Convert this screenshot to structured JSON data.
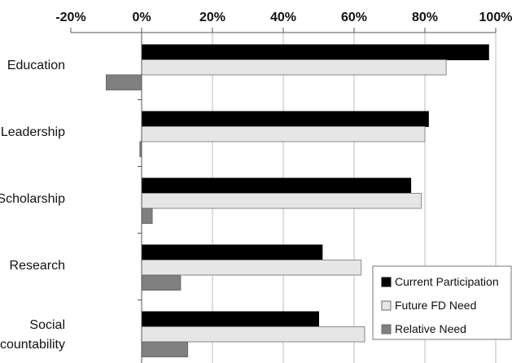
{
  "chart_data": {
    "type": "bar",
    "orientation": "horizontal",
    "categories": [
      "Education",
      "Leadership",
      "Scholarship",
      "Research",
      "Social Accountability"
    ],
    "category_lines": [
      [
        "Education"
      ],
      [
        "Leadership"
      ],
      [
        "Scholarship"
      ],
      [
        "Research"
      ],
      [
        "Social",
        "Accountability"
      ]
    ],
    "series": [
      {
        "name": "Current Participation",
        "color": "#000000",
        "values": [
          98,
          81,
          76,
          51,
          50
        ]
      },
      {
        "name": "Future FD Need",
        "color": "#e6e6e6",
        "values": [
          86,
          80,
          79,
          62,
          63
        ]
      },
      {
        "name": "Relative Need",
        "color": "#808080",
        "values": [
          -10,
          -0.5,
          3,
          11,
          13
        ]
      }
    ],
    "xlim": [
      -20,
      100
    ],
    "xticks": [
      -20,
      0,
      20,
      40,
      60,
      80,
      100
    ],
    "xtick_labels": [
      "-20%",
      "0%",
      "20%",
      "40%",
      "60%",
      "80%",
      "100%"
    ],
    "grid": "vertical",
    "legend_position": "bottom-right",
    "title": "",
    "xlabel": "",
    "ylabel": ""
  }
}
